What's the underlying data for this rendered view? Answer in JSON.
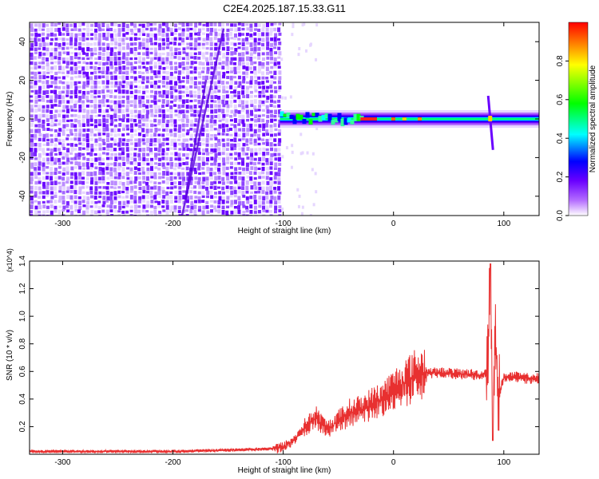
{
  "figure_title": "C2E4.2025.187.15.33.G11",
  "chart_data": [
    {
      "type": "heatmap",
      "title": "C2E4.2025.187.15.33.G11",
      "xlabel": "Height of straight line (km)",
      "ylabel": "Frequency (Hz)",
      "xlim": [
        -330,
        132
      ],
      "ylim": [
        -50,
        50
      ],
      "xticks": [
        -300,
        -200,
        -100,
        0,
        100
      ],
      "yticks": [
        -40,
        -20,
        0,
        20,
        40
      ],
      "colorbar": {
        "label": "Normalized spectral amplitude",
        "range": [
          0.0,
          1.0
        ],
        "ticks": [
          0.0,
          0.2,
          0.4,
          0.6,
          0.8
        ],
        "colormap": [
          "#ffffff",
          "#9933ff",
          "#0000ff",
          "#00ffff",
          "#00ff00",
          "#ffff00",
          "#ff0000"
        ]
      },
      "features": [
        {
          "name": "noise band",
          "x_range": [
            -330,
            -103
          ],
          "freq_range": [
            -50,
            50
          ],
          "amplitude": 0.15
        },
        {
          "name": "signal band",
          "x_range": [
            -103,
            132
          ],
          "center_freq": 0,
          "halfwidth": 3,
          "amplitude": 0.35
        },
        {
          "name": "strong peak",
          "x_range": [
            -30,
            -15
          ],
          "center_freq": 0,
          "amplitude": 0.95
        },
        {
          "name": "burst",
          "x": 88,
          "freq_range": [
            -16,
            12
          ],
          "amplitude": 0.5
        }
      ],
      "grid": false
    },
    {
      "type": "line",
      "xlabel": "Height of straight line (km)",
      "ylabel": "SNR (10 * v/v)",
      "y_multiplier": "(x10^4)",
      "xlim": [
        -330,
        132
      ],
      "ylim": [
        0,
        1.4
      ],
      "xticks": [
        -300,
        -200,
        -100,
        0,
        100
      ],
      "yticks": [
        0.2,
        0.4,
        0.6,
        0.8,
        1.0,
        1.2,
        1.4
      ],
      "color": "#e83030",
      "series": [
        {
          "x": [
            -330,
            -200,
            -150,
            -110,
            -100,
            -90,
            -80,
            -70,
            -60,
            -50,
            -40,
            -30,
            -20,
            -10,
            0,
            10,
            20,
            30,
            40,
            50,
            60,
            70,
            80,
            85,
            88,
            90,
            92,
            95,
            100,
            110,
            120,
            132
          ],
          "values": [
            0.02,
            0.02,
            0.03,
            0.04,
            0.05,
            0.1,
            0.2,
            0.26,
            0.18,
            0.24,
            0.3,
            0.32,
            0.36,
            0.4,
            0.46,
            0.52,
            0.57,
            0.59,
            0.59,
            0.59,
            0.58,
            0.58,
            0.57,
            0.6,
            1.38,
            0.1,
            1.0,
            0.4,
            0.56,
            0.56,
            0.55,
            0.55
          ]
        }
      ],
      "grid": false
    }
  ]
}
